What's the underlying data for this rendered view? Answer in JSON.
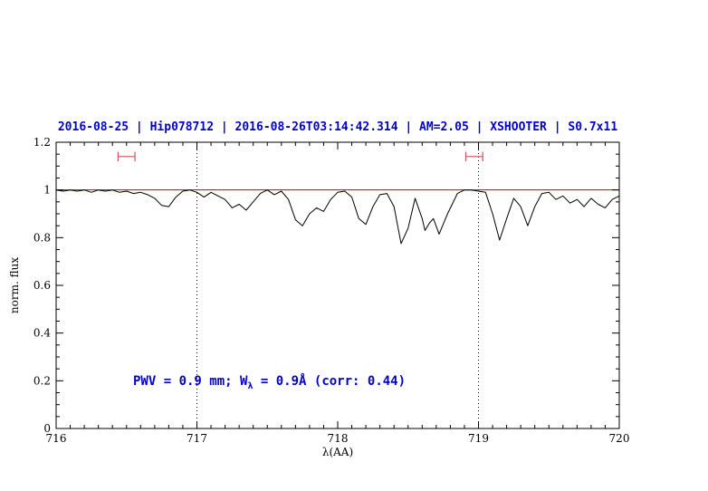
{
  "title": "2016-08-25 | Hip078712 | 2016-08-26T03:14:42.314 | AM=2.05 | XSHOOTER | S0.7x11",
  "annotation": {
    "prefix": "PWV = 0.9 mm; W",
    "sub": "λ",
    "suffix": " = 0.9Å (corr: 0.44)"
  },
  "colors": {
    "title": "#0000cd",
    "annotation": "#0000cd",
    "reference_line": "#cc0000",
    "marker": "#cc5555",
    "spectrum": "#000000",
    "vline": "#000000"
  },
  "chart_data": {
    "type": "line",
    "title": "2016-08-25 | Hip078712 | 2016-08-26T03:14:42.314 | AM=2.05 | XSHOOTER | S0.7x11",
    "xlabel": "λ(AA)",
    "ylabel": "norm. flux",
    "xlim": [
      716,
      720
    ],
    "ylim": [
      0,
      1.2
    ],
    "xticks": [
      716,
      717,
      718,
      719,
      720
    ],
    "xtick_labels": [
      "716",
      "717",
      "718",
      "719",
      "720"
    ],
    "yticks": [
      0,
      0.2,
      0.4,
      0.6,
      0.8,
      1,
      1.2
    ],
    "ytick_labels": [
      "0",
      "0.2",
      "0.4",
      "0.6",
      "0.8",
      "1",
      "1.2"
    ],
    "x_minor_step": 0.1,
    "y_minor_step": 0.05,
    "grid": false,
    "reference_line_y": 1.0,
    "dotted_vlines": [
      717,
      719
    ],
    "markers": [
      {
        "x_center": 716.5,
        "x_half_width": 0.06,
        "y": 1.14,
        "cap_half_height": 0.02
      },
      {
        "x_center": 718.97,
        "x_half_width": 0.06,
        "y": 1.14,
        "cap_half_height": 0.02
      }
    ],
    "series": [
      {
        "name": "spectrum",
        "color": "#000000",
        "x": [
          716.0,
          716.05,
          716.1,
          716.15,
          716.2,
          716.25,
          716.3,
          716.35,
          716.4,
          716.45,
          716.5,
          716.55,
          716.6,
          716.65,
          716.7,
          716.75,
          716.8,
          716.85,
          716.9,
          716.95,
          717.0,
          717.05,
          717.1,
          717.15,
          717.2,
          717.25,
          717.3,
          717.35,
          717.4,
          717.45,
          717.5,
          717.55,
          717.6,
          717.65,
          717.7,
          717.75,
          717.8,
          717.85,
          717.9,
          717.95,
          718.0,
          718.05,
          718.1,
          718.15,
          718.2,
          718.25,
          718.3,
          718.35,
          718.4,
          718.45,
          718.5,
          718.55,
          718.6,
          718.62,
          718.65,
          718.68,
          718.72,
          718.78,
          718.85,
          718.9,
          718.95,
          719.0,
          719.05,
          719.1,
          719.15,
          719.2,
          719.25,
          719.3,
          719.35,
          719.4,
          719.45,
          719.5,
          719.55,
          719.6,
          719.65,
          719.7,
          719.75,
          719.8,
          719.85,
          719.9,
          719.95,
          720.0
        ],
        "y": [
          1.0,
          0.995,
          1.0,
          0.995,
          1.0,
          0.99,
          1.0,
          0.995,
          1.0,
          0.99,
          0.995,
          0.985,
          0.99,
          0.98,
          0.965,
          0.935,
          0.93,
          0.97,
          0.995,
          1.0,
          0.99,
          0.97,
          0.99,
          0.975,
          0.96,
          0.925,
          0.94,
          0.915,
          0.95,
          0.985,
          1.0,
          0.98,
          0.995,
          0.96,
          0.875,
          0.85,
          0.9,
          0.925,
          0.91,
          0.96,
          0.99,
          0.995,
          0.97,
          0.88,
          0.855,
          0.93,
          0.98,
          0.985,
          0.93,
          0.775,
          0.84,
          0.965,
          0.88,
          0.83,
          0.86,
          0.88,
          0.815,
          0.9,
          0.985,
          1.0,
          1.0,
          0.995,
          0.99,
          0.9,
          0.79,
          0.88,
          0.965,
          0.93,
          0.85,
          0.93,
          0.985,
          0.99,
          0.96,
          0.975,
          0.945,
          0.96,
          0.93,
          0.965,
          0.94,
          0.925,
          0.96,
          0.975
        ]
      }
    ],
    "legend": null
  }
}
